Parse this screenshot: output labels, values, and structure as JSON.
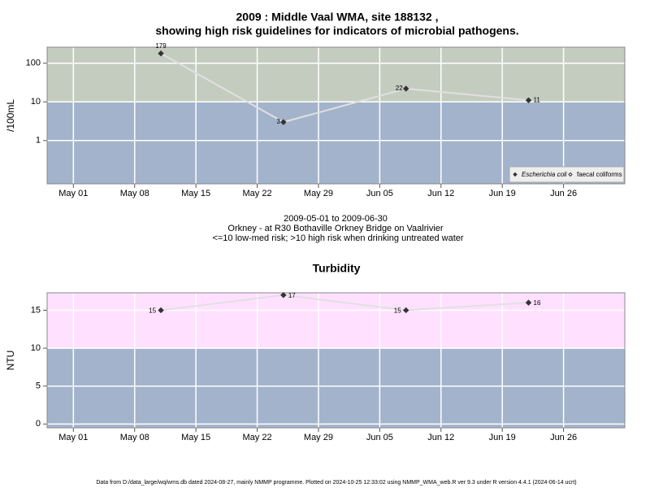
{
  "chart_data": [
    {
      "type": "line",
      "title": [
        "2009 : Middle Vaal WMA, site 188132 ,",
        "showing high risk guidelines for indicators of microbial pathogens."
      ],
      "ylabel": "/100mL",
      "yscale": "log",
      "x": [
        "2009-05-11",
        "2009-05-25",
        "2009-06-08",
        "2009-06-22"
      ],
      "series": [
        {
          "name": "Escherichia coli",
          "color": "#333333",
          "values": [
            179,
            3,
            22,
            11
          ]
        },
        {
          "name": "faecal coliforms",
          "color": "#333333",
          "values": [
            null,
            null,
            null,
            null
          ]
        }
      ],
      "xlim": [
        "2009-04-28",
        "2009-07-03"
      ],
      "xticks": [
        {
          "value": "2009-05-01",
          "label": "May 01"
        },
        {
          "value": "2009-05-08",
          "label": "May 08"
        },
        {
          "value": "2009-05-15",
          "label": "May 15"
        },
        {
          "value": "2009-05-22",
          "label": "May 22"
        },
        {
          "value": "2009-05-29",
          "label": "May 29"
        },
        {
          "value": "2009-06-05",
          "label": "Jun 05"
        },
        {
          "value": "2009-06-12",
          "label": "Jun 12"
        },
        {
          "value": "2009-06-19",
          "label": "Jun 19"
        },
        {
          "value": "2009-06-26",
          "label": "Jun 26"
        }
      ],
      "ylim": [
        0.076,
        260
      ],
      "yticks": [
        1,
        10,
        100
      ],
      "threshold": 10,
      "band_colors": [
        "#a3b3cc",
        "#c4ccbf"
      ],
      "line_color": "#e0e0e0",
      "grid": true,
      "legend": "lower right",
      "caption": [
        "2009-05-01 to 2009-06-30",
        "Orkney - at R30 Bothaville Orkney Bridge on Vaalrivier",
        "<=10 low-med risk; >10 high risk when drinking untreated water"
      ]
    },
    {
      "type": "line",
      "title": [
        "Turbidity"
      ],
      "ylabel": "NTU",
      "x": [
        "2009-05-11",
        "2009-05-25",
        "2009-06-08",
        "2009-06-22"
      ],
      "series": [
        {
          "color": "#333333",
          "values": [
            15,
            17,
            15,
            16
          ]
        }
      ],
      "xlim": [
        "2009-04-28",
        "2009-07-03"
      ],
      "xticks": [
        {
          "value": "2009-05-01",
          "label": "May 01"
        },
        {
          "value": "2009-05-08",
          "label": "May 08"
        },
        {
          "value": "2009-05-15",
          "label": "May 15"
        },
        {
          "value": "2009-05-22",
          "label": "May 22"
        },
        {
          "value": "2009-05-29",
          "label": "May 29"
        },
        {
          "value": "2009-06-05",
          "label": "Jun 05"
        },
        {
          "value": "2009-06-12",
          "label": "Jun 12"
        },
        {
          "value": "2009-06-19",
          "label": "Jun 19"
        },
        {
          "value": "2009-06-26",
          "label": "Jun 26"
        }
      ],
      "ylim": [
        -0.5,
        17.3
      ],
      "yticks": [
        0,
        5,
        10,
        15
      ],
      "threshold": 10,
      "band_colors": [
        "#a3b3cc",
        "#ffe0ff"
      ],
      "line_color": "#e0e0e0",
      "grid": true
    }
  ],
  "footer": "Data from D:/data_large/wq/wms.db dated 2024-08-27, mainly NMMP programme. Plotted on 2024-10-25 12:33:02 using NMMP_WMA_web.R ver 9.3 under R version 4.4.1 (2024-06-14 ucrt)"
}
